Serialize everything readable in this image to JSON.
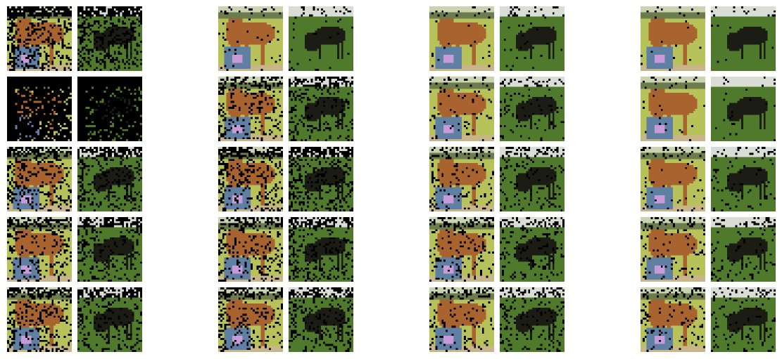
{
  "figure": {
    "rows": 5,
    "columns": 4,
    "images_per_cell": [
      "brown-horse-with-bucket",
      "black-horse-grazing"
    ]
  },
  "colors": {
    "background": "#ffffff",
    "masked_pixel": "#000000",
    "brown_horse_sky": "#c9d3b0",
    "brown_horse_trees": "#6c7c4c",
    "brown_horse_grass": "#b8c25a",
    "brown_horse_body": "#a8632e",
    "bucket": "#5f7fa3",
    "bucket_label": "#c79bd9",
    "black_horse_sky": "#d9ddd6",
    "black_horse_grass": "#4f7a2c",
    "black_horse_body": "#1b1d14"
  },
  "mask_density": [
    [
      0.28,
      0.03,
      0.02,
      0.01
    ],
    [
      0.85,
      0.18,
      0.06,
      0.02
    ],
    [
      0.22,
      0.22,
      0.1,
      0.05
    ],
    [
      0.2,
      0.18,
      0.12,
      0.08
    ],
    [
      0.2,
      0.18,
      0.12,
      0.08
    ]
  ]
}
